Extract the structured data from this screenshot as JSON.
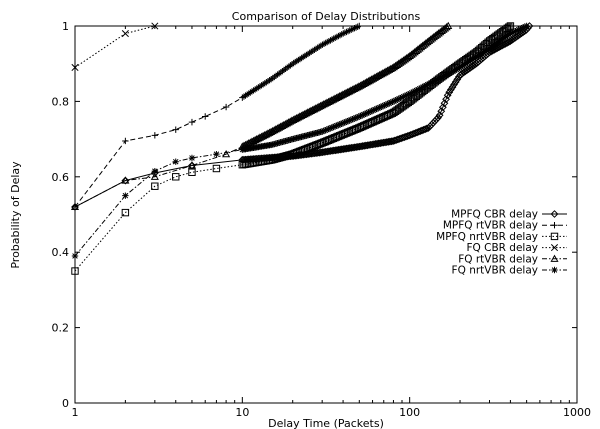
{
  "chart_data": {
    "type": "line",
    "title": "Comparison of Delay Distributions",
    "xlabel": "Delay Time (Packets)",
    "ylabel": "Probability of Delay",
    "xscale": "log",
    "xlim": [
      1,
      1000
    ],
    "ylim": [
      0,
      1
    ],
    "xticks": [
      {
        "value": 1,
        "label": "1"
      },
      {
        "value": 10,
        "label": "10"
      },
      {
        "value": 100,
        "label": "100"
      },
      {
        "value": 1000,
        "label": "1000"
      }
    ],
    "yticks": [
      {
        "value": 0,
        "label": "0"
      },
      {
        "value": 0.2,
        "label": "0.2"
      },
      {
        "value": 0.4,
        "label": "0.4"
      },
      {
        "value": 0.6,
        "label": "0.6"
      },
      {
        "value": 0.8,
        "label": "0.8"
      },
      {
        "value": 1,
        "label": "1"
      }
    ],
    "grid": false,
    "legend_position": "right",
    "series": [
      {
        "name": "MPFQ CBR delay",
        "marker": "diamond",
        "dash": "solid",
        "x": [
          1,
          2,
          3,
          5,
          10,
          20,
          30,
          50,
          80,
          100,
          130,
          150,
          170,
          200,
          250,
          300,
          400,
          500,
          520
        ],
        "y": [
          0.52,
          0.59,
          0.61,
          0.63,
          0.645,
          0.655,
          0.665,
          0.68,
          0.695,
          0.71,
          0.73,
          0.76,
          0.82,
          0.87,
          0.9,
          0.93,
          0.96,
          0.99,
          1.0
        ]
      },
      {
        "name": "MPFQ rtVBR delay",
        "marker": "plus",
        "dash": "dashed",
        "x": [
          1,
          2,
          3,
          4,
          5,
          6,
          8,
          10,
          15,
          20,
          30,
          40,
          50
        ],
        "y": [
          0.52,
          0.695,
          0.71,
          0.725,
          0.745,
          0.76,
          0.785,
          0.81,
          0.86,
          0.9,
          0.95,
          0.98,
          1.0
        ]
      },
      {
        "name": "MPFQ nrtVBR delay",
        "marker": "square",
        "dash": "dotted",
        "x": [
          1,
          2,
          3,
          4,
          5,
          7,
          10,
          15,
          20,
          30,
          50,
          80,
          100,
          150,
          200,
          250,
          300,
          400
        ],
        "y": [
          0.35,
          0.505,
          0.575,
          0.6,
          0.612,
          0.622,
          0.632,
          0.645,
          0.66,
          0.69,
          0.73,
          0.77,
          0.8,
          0.86,
          0.9,
          0.93,
          0.96,
          1.0
        ]
      },
      {
        "name": "FQ CBR delay",
        "marker": "x",
        "dash": "dotted",
        "x": [
          1,
          2,
          3
        ],
        "y": [
          0.89,
          0.98,
          1.0
        ]
      },
      {
        "name": "FQ rtVBR delay",
        "marker": "triangle",
        "dash": "dashdot",
        "x": [
          1,
          2,
          3,
          5,
          8,
          10,
          15,
          20,
          30,
          50,
          80,
          100,
          130,
          170
        ],
        "y": [
          0.52,
          0.59,
          0.6,
          0.63,
          0.66,
          0.68,
          0.72,
          0.75,
          0.79,
          0.84,
          0.89,
          0.92,
          0.96,
          1.0
        ]
      },
      {
        "name": "FQ nrtVBR delay",
        "marker": "star",
        "dash": "dashdot",
        "x": [
          1,
          2,
          3,
          4,
          5,
          7,
          10,
          15,
          20,
          30,
          50,
          80,
          100,
          150,
          200,
          300,
          400,
          500
        ],
        "y": [
          0.39,
          0.55,
          0.615,
          0.64,
          0.65,
          0.66,
          0.672,
          0.685,
          0.7,
          0.72,
          0.76,
          0.8,
          0.82,
          0.86,
          0.89,
          0.94,
          0.98,
          1.0
        ]
      }
    ]
  }
}
